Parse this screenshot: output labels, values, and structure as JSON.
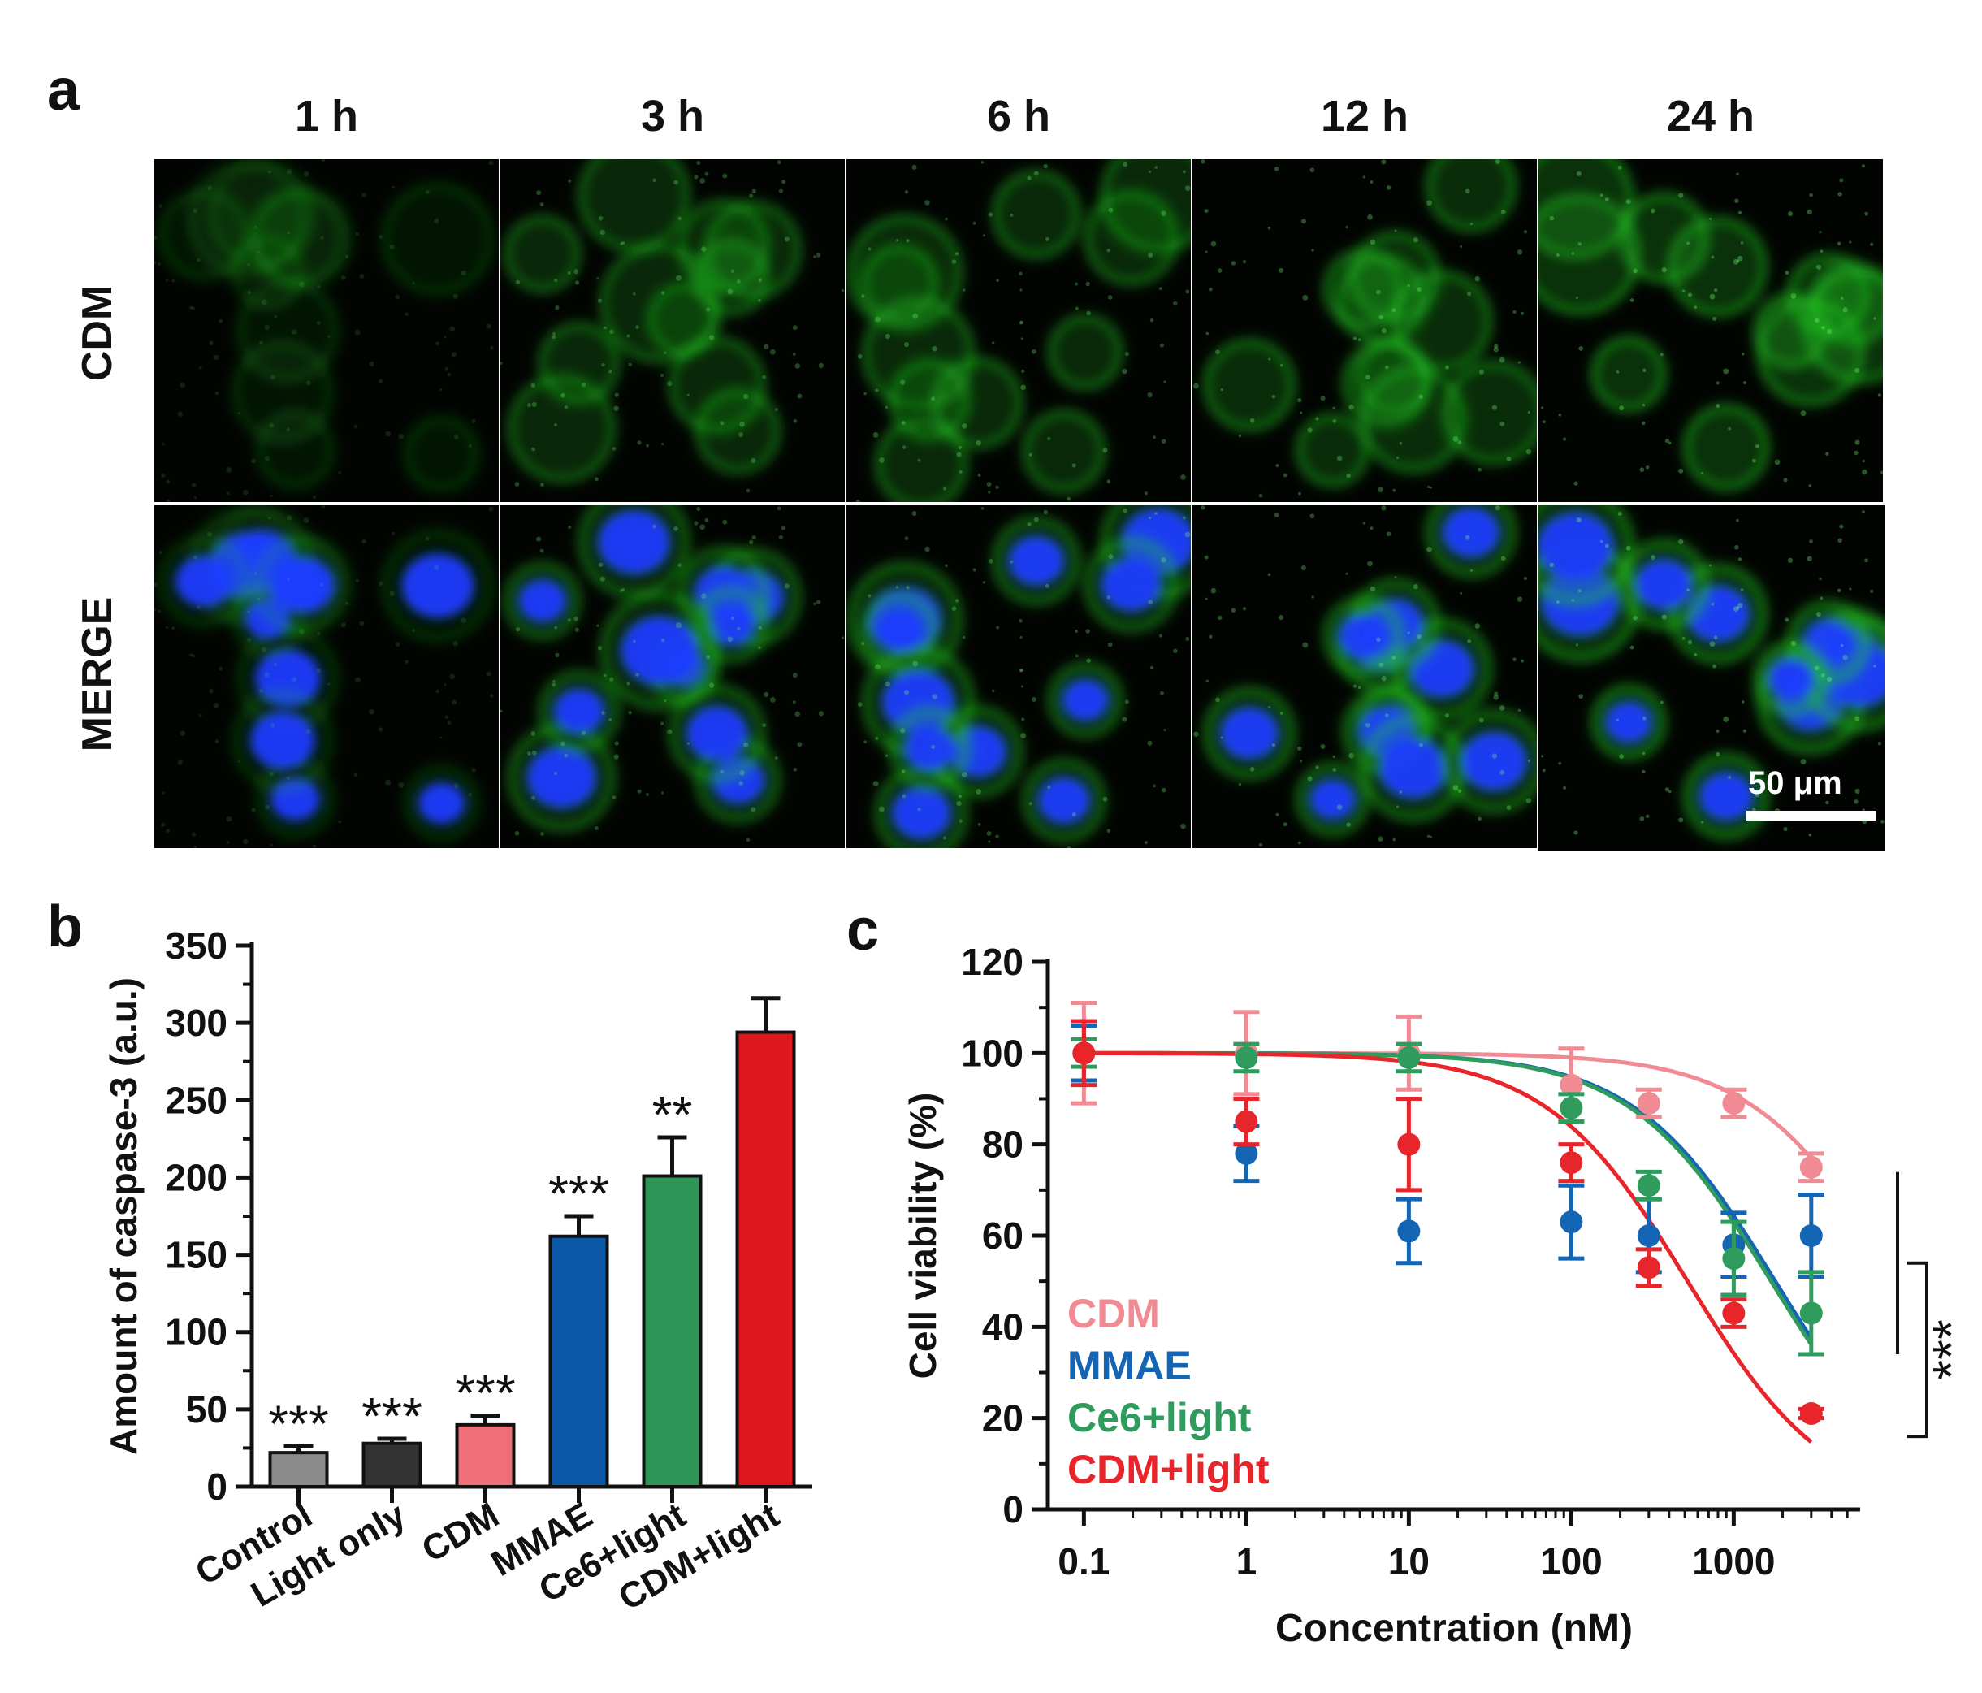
{
  "figure": {
    "panel_a": {
      "letter": "a",
      "time_points": [
        "1 h",
        "3 h",
        "6 h",
        "12 h",
        "24 h"
      ],
      "rows": [
        "CDM",
        "MERGE"
      ],
      "scale_bar_label": "50 μm",
      "colors": {
        "cdm_channel": "#22c022",
        "nucleus_channel": "#1a3cff",
        "background": "#020402"
      }
    },
    "panel_b": {
      "letter": "b"
    },
    "panel_c": {
      "letter": "c"
    }
  },
  "chart_data": [
    {
      "type": "bar",
      "panel": "b",
      "ylabel": "Amount of caspase-3 (a.u.)",
      "ylim": [
        0,
        350
      ],
      "yticks": [
        0,
        50,
        100,
        150,
        200,
        250,
        300,
        350
      ],
      "categories": [
        "Control",
        "Light only",
        "CDM",
        "MMAE",
        "Ce6+light",
        "CDM+light"
      ],
      "values": [
        22,
        28,
        40,
        162,
        201,
        294
      ],
      "errors": [
        4,
        3,
        6,
        13,
        25,
        22
      ],
      "significance": [
        "***",
        "***",
        "***",
        "***",
        "**",
        ""
      ],
      "colors": [
        "#8a8a8a",
        "#333333",
        "#ee6f77",
        "#0b57a8",
        "#2f9556",
        "#e0161e"
      ]
    },
    {
      "type": "scatter",
      "panel": "c",
      "xlabel": "Concentration (nM)",
      "ylabel": "Cell viability (%)",
      "xscale": "log",
      "xlim": [
        0.06,
        6000
      ],
      "ylim": [
        0,
        120
      ],
      "xticks": [
        0.1,
        1,
        10,
        100,
        1000
      ],
      "xtick_labels": [
        "0.1",
        "1",
        "10",
        "100",
        "1000"
      ],
      "yticks": [
        0,
        20,
        40,
        60,
        80,
        100,
        120
      ],
      "legend_position": "bottom-left",
      "x": [
        0.1,
        1,
        10,
        100,
        300,
        1000,
        3000
      ],
      "series": [
        {
          "name": "CDM",
          "color": "#f08b93",
          "values": [
            100,
            100,
            100,
            93,
            89,
            89,
            75
          ],
          "errors": [
            11,
            9,
            8,
            8,
            3,
            3,
            3
          ],
          "fit": {
            "top": 100,
            "bottom": 0,
            "ic50": 10000,
            "hill": 1.0
          }
        },
        {
          "name": "MMAE",
          "color": "#1565b5",
          "values": [
            100,
            78,
            61,
            63,
            60,
            58,
            60
          ],
          "errors": [
            6,
            6,
            7,
            8,
            8,
            7,
            9
          ],
          "fit": {
            "top": 100,
            "bottom": 0,
            "ic50": 1800,
            "hill": 1.0
          }
        },
        {
          "name": "Ce6+light",
          "color": "#2f9c5e",
          "values": [
            100,
            99,
            99,
            88,
            71,
            55,
            43
          ],
          "errors": [
            3,
            3,
            3,
            3,
            3,
            8,
            9
          ],
          "fit": {
            "top": 100,
            "bottom": 0,
            "ic50": 1700,
            "hill": 1.0
          }
        },
        {
          "name": "CDM+light",
          "color": "#e8252a",
          "values": [
            100,
            85,
            80,
            76,
            53,
            43,
            21
          ],
          "errors": [
            7,
            5,
            10,
            4,
            4,
            3,
            1
          ],
          "fit": {
            "top": 100,
            "bottom": 0,
            "ic50": 520,
            "hill": 1.0
          }
        }
      ],
      "significance": "***"
    }
  ]
}
